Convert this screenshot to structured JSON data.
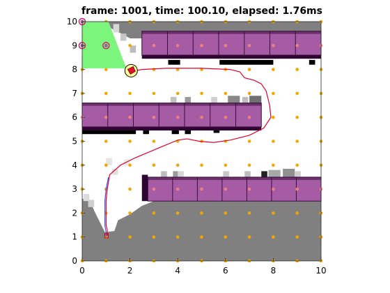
{
  "title": "frame: 1001, time: 100.10, elapsed: 1.76ms",
  "colors": {
    "free_cell": "#ffffff",
    "occupied_dark": "#808080",
    "shelf_fill": "#a55ca5",
    "shelf_edge": "#3a0c3a",
    "shelf_shadow": "#2d0530",
    "grid_point": "#f0a800",
    "shelf_point": "#f08080",
    "path_red": "#e0002a",
    "path_blue": "#4060ff",
    "view_cone": "#7cf57c",
    "robot_circle": "#ffff99",
    "landmark": "#a05ca5"
  },
  "chart_data": {
    "type": "scatter",
    "xlim": [
      0,
      10
    ],
    "ylim": [
      0,
      10
    ],
    "xticks": [
      "0",
      "2",
      "4",
      "6",
      "8",
      "10"
    ],
    "yticks": [
      "0",
      "1",
      "2",
      "3",
      "4",
      "5",
      "6",
      "7",
      "8",
      "9",
      "10"
    ],
    "grid": false,
    "robot": {
      "x": 2.05,
      "y": 7.95
    },
    "view_cone": [
      [
        0,
        10
      ],
      [
        1.1,
        10
      ],
      [
        1.85,
        8.05
      ],
      [
        0,
        8.05
      ]
    ],
    "landmarks": [
      [
        0,
        10
      ],
      [
        0,
        9
      ],
      [
        1,
        9
      ]
    ],
    "grid_points": {
      "x": [
        0,
        1,
        2,
        3,
        4,
        5,
        6,
        7,
        8,
        9,
        10
      ],
      "y": [
        0,
        1,
        2,
        3,
        4,
        5,
        6,
        7,
        8,
        9,
        10
      ]
    },
    "shelves": [
      {
        "x": [
          2.5,
          10
        ],
        "y": [
          8.6,
          9.6
        ],
        "cells": 7
      },
      {
        "x": [
          0,
          7.5
        ],
        "y": [
          5.6,
          6.6
        ],
        "cells": 7
      },
      {
        "x": [
          2.75,
          10
        ],
        "y": [
          2.5,
          3.5
        ],
        "cells": 7
      }
    ],
    "shelf_shadows": [
      {
        "x": [
          2.5,
          10
        ],
        "y": [
          8.45,
          8.6
        ]
      },
      {
        "x": [
          0,
          7.5
        ],
        "y": [
          5.45,
          5.6
        ]
      },
      {
        "x": [
          2.5,
          2.75
        ],
        "y": [
          2.5,
          3.6
        ]
      }
    ],
    "path_red": [
      [
        1.05,
        1.05
      ],
      [
        1.05,
        1.3
      ],
      [
        1.0,
        1.5
      ],
      [
        1.0,
        2.5
      ],
      [
        1.05,
        3.0
      ],
      [
        1.15,
        3.6
      ],
      [
        1.6,
        4.0
      ],
      [
        2.2,
        4.3
      ],
      [
        2.8,
        4.55
      ],
      [
        3.4,
        4.8
      ],
      [
        4.0,
        5.05
      ],
      [
        4.4,
        5.1
      ],
      [
        4.9,
        5.0
      ],
      [
        5.5,
        4.95
      ],
      [
        6.2,
        5.05
      ],
      [
        7.0,
        5.25
      ],
      [
        7.6,
        5.55
      ],
      [
        7.9,
        6.0
      ],
      [
        7.85,
        6.5
      ],
      [
        7.7,
        7.1
      ],
      [
        7.5,
        7.4
      ],
      [
        7.2,
        7.55
      ],
      [
        6.8,
        7.65
      ],
      [
        6.6,
        7.9
      ],
      [
        6.2,
        8.0
      ],
      [
        5.0,
        8.05
      ],
      [
        3.5,
        8.05
      ],
      [
        2.5,
        8.0
      ],
      [
        2.2,
        7.95
      ],
      [
        2.05,
        7.95
      ]
    ],
    "path_blue": [
      [
        1.0,
        1.0
      ],
      [
        1.0,
        1.2
      ],
      [
        0.95,
        1.5
      ],
      [
        0.95,
        2.5
      ],
      [
        1.0,
        3.0
      ],
      [
        1.1,
        3.5
      ]
    ]
  }
}
